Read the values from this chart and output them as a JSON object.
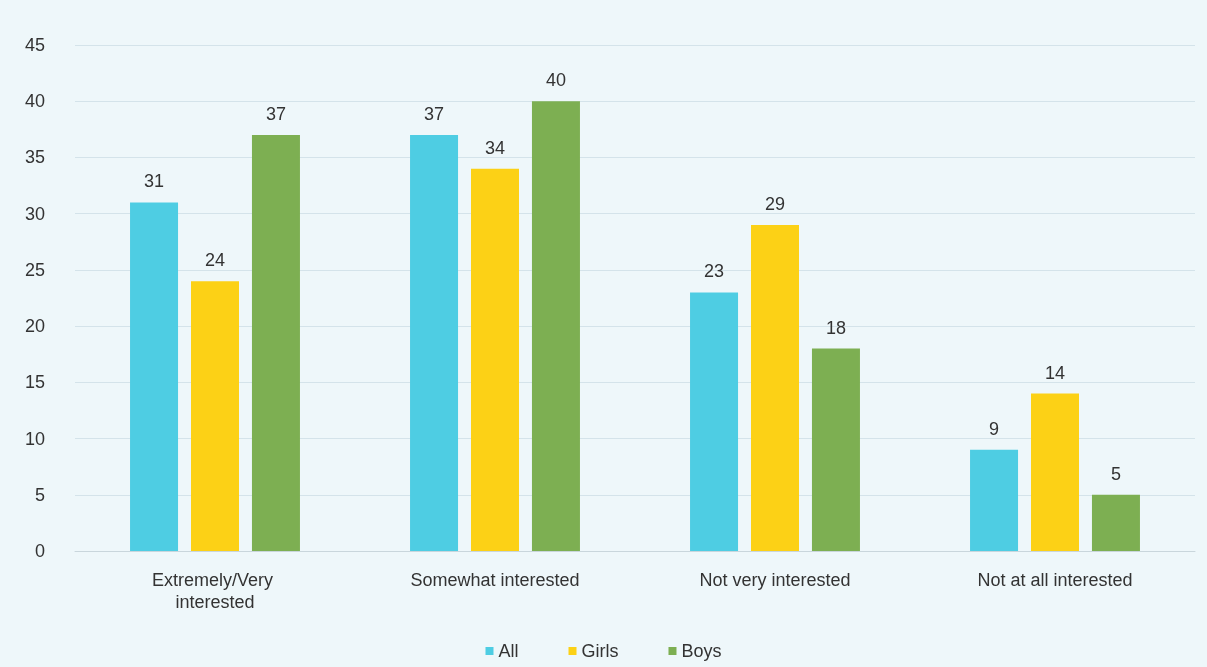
{
  "chart_data": {
    "type": "bar",
    "categories": [
      "Extremely/Very interested",
      "Somewhat interested",
      "Not very interested",
      "Not at all interested"
    ],
    "series": [
      {
        "name": "All",
        "color": "#4ecde3",
        "values": [
          31,
          37,
          23,
          9
        ]
      },
      {
        "name": "Girls",
        "color": "#fcd116",
        "values": [
          24,
          34,
          29,
          14
        ]
      },
      {
        "name": "Boys",
        "color": "#7daf52",
        "values": [
          37,
          40,
          18,
          5
        ]
      }
    ],
    "ylim": [
      0,
      45
    ],
    "yticks": [
      0,
      5,
      10,
      15,
      20,
      25,
      30,
      35,
      40,
      45
    ],
    "grid": "y",
    "legend": "bottom",
    "data_labels": true
  }
}
